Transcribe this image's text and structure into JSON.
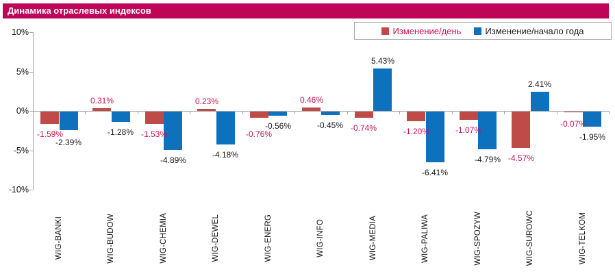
{
  "title": "Динамика отраслевых индексов",
  "colors": {
    "banner": "#BE0558",
    "day_bar": "#BF4B48",
    "ytd_bar": "#0D71BE",
    "day_label": "#C81450",
    "ytd_label": "#1A1A1A",
    "axis": "#A8A8A8"
  },
  "chart_data": {
    "type": "bar",
    "title": "Динамика отраслевых индексов",
    "categories": [
      "WIG-BANKI",
      "WIG-BUDOW",
      "WIG-CHEMIA",
      "WIG-DEWEL",
      "WIG-ENERG",
      "WIG-INFO",
      "WIG-MEDIA",
      "WIG-PALIWA",
      "WIG-SPOZYW",
      "WIG-SUROWC",
      "WIG-TELKOM"
    ],
    "series": [
      {
        "name": "Изменение/день",
        "values": [
          -1.59,
          0.31,
          -1.53,
          0.23,
          -0.76,
          0.46,
          -0.74,
          -1.2,
          -1.07,
          -4.57,
          -0.07
        ],
        "labels": [
          "-1.59%",
          "0.31%",
          "-1.53%",
          "0.23%",
          "-0.76%",
          "0.46%",
          "-0.74%",
          "-1.20%",
          "-1.07%",
          "-4.57%",
          "-0.07%"
        ]
      },
      {
        "name": "Изменение/начало года",
        "values": [
          -2.39,
          -1.28,
          -4.89,
          -4.18,
          -0.56,
          -0.45,
          5.43,
          -6.41,
          -4.79,
          2.41,
          -1.95
        ],
        "labels": [
          "-2.39%",
          "-1.28%",
          "-4.89%",
          "-4.18%",
          "-0.56%",
          "-0.45%",
          "5.43%",
          "-6.41%",
          "-4.79%",
          "2.41%",
          "-1.95%"
        ]
      }
    ],
    "y_ticks": [
      {
        "label": "10%",
        "value": 10
      },
      {
        "label": "5%",
        "value": 5
      },
      {
        "label": "0%",
        "value": 0
      },
      {
        "label": "-5%",
        "value": -5
      },
      {
        "label": "-10%",
        "value": -10
      }
    ],
    "ylim": [
      -10,
      10
    ],
    "grid": false,
    "legend_position": "top-right",
    "data_labels": true
  }
}
